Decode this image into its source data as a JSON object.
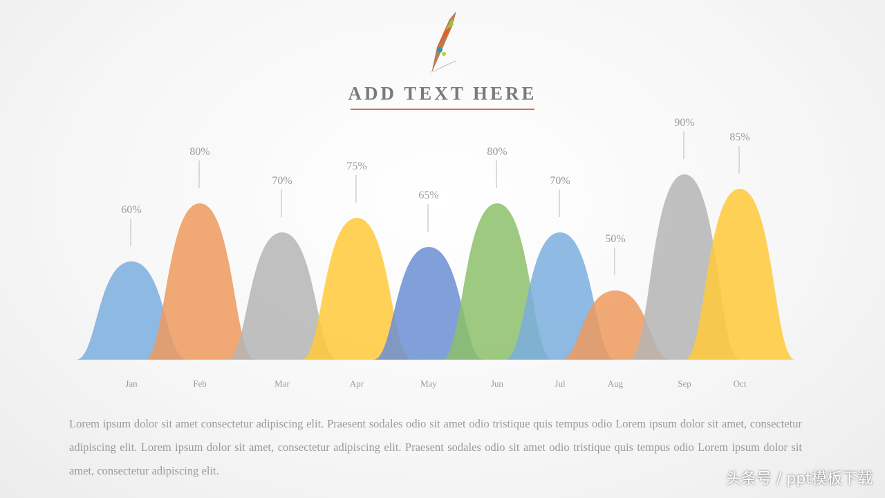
{
  "title": "ADD TEXT HERE",
  "chart_data": {
    "type": "area",
    "categories": [
      "Jan",
      "Feb",
      "Mar",
      "Apr",
      "May",
      "Jun",
      "Jul",
      "Aug",
      "Sep",
      "Oct"
    ],
    "values": [
      60,
      80,
      70,
      75,
      65,
      80,
      70,
      50,
      90,
      85
    ],
    "value_labels": [
      "60%",
      "80%",
      "70%",
      "75%",
      "65%",
      "80%",
      "70%",
      "50%",
      "90%",
      "85%"
    ],
    "colors": [
      "#7aaede",
      "#ee9a5e",
      "#b5b5b5",
      "#ffc93a",
      "#6b8fd2",
      "#8dbf6a",
      "#7aaede",
      "#ee9a5e",
      "#b5b5b5",
      "#ffc93a"
    ],
    "ylim": [
      0,
      100
    ],
    "grid": false
  },
  "body_text": "Lorem ipsum dolor sit amet consectetur adipiscing elit. Praesent sodales odio sit amet odio tristique quis tempus odio Lorem ipsum dolor sit amet, consectetur adipiscing elit. Lorem ipsum dolor sit amet, consectetur adipiscing elit. Praesent sodales odio sit amet odio tristique quis tempus odio Lorem ipsum dolor sit amet, consectetur adipiscing elit.",
  "watermark": "头条号 / ppt模板下载"
}
